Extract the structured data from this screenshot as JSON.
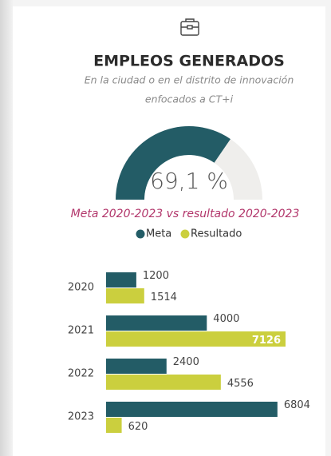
{
  "header": {
    "title": "EMPLEOS GENERADOS",
    "subtitle": [
      "En la ciudad o en el distrito de innovación",
      "enfocados a CT+i"
    ]
  },
  "chart_data": [
    {
      "type": "gauge",
      "value": 69.1,
      "value_label": "69,1 %",
      "ylim": [
        0,
        100
      ],
      "color": "#235c66",
      "track_color": "#efeeec"
    },
    {
      "type": "bar",
      "orientation": "horizontal",
      "title": "Meta 2020-2023 vs resultado 2020-2023",
      "categories": [
        "2020",
        "2021",
        "2022",
        "2023"
      ],
      "series": [
        {
          "name": "Meta",
          "color": "#235c66",
          "values": [
            1200,
            4000,
            2400,
            6804
          ]
        },
        {
          "name": "Resultado",
          "color": "#cbcf3e",
          "values": [
            1514,
            7126,
            4556,
            620
          ]
        }
      ],
      "xlim": [
        0,
        7126
      ]
    }
  ]
}
